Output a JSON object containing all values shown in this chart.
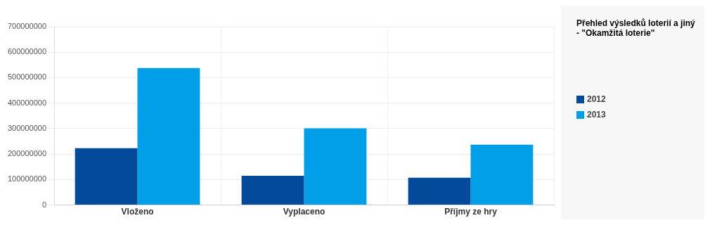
{
  "chart_data": {
    "type": "bar",
    "title": "Přehled výsledků loterií a jiný\n- \"Okamžitá loterie\"",
    "categories": [
      "Vloženo",
      "Vyplaceno",
      "Příjmy ze hry"
    ],
    "series": [
      {
        "name": "2012",
        "color": "#034b9a",
        "values": [
          223000000,
          115000000,
          107000000
        ]
      },
      {
        "name": "2013",
        "color": "#029fe9",
        "values": [
          538000000,
          301000000,
          237000000
        ]
      }
    ],
    "ylim": [
      0,
      700000000
    ],
    "yticks": [
      0,
      100000000,
      200000000,
      300000000,
      400000000,
      500000000,
      600000000,
      700000000
    ],
    "grid": true,
    "legend": "right"
  }
}
